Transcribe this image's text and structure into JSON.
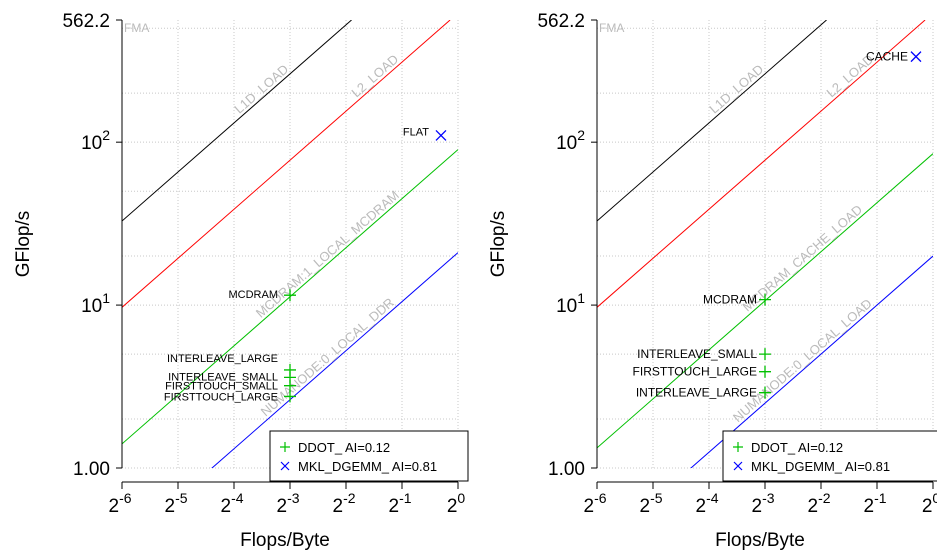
{
  "chart_data": [
    {
      "type": "line",
      "xscale": "log2",
      "yscale": "log10",
      "xlim": [
        0.015625,
        1
      ],
      "ylim": [
        1.0,
        562.2
      ],
      "xlabel": "Flops/Byte",
      "ylabel": "GFlop/s",
      "x_ticks": [
        {
          "base": "2",
          "exp": "-6",
          "value": 0.015625
        },
        {
          "base": "2",
          "exp": "-5",
          "value": 0.03125
        },
        {
          "base": "2",
          "exp": "-4",
          "value": 0.0625
        },
        {
          "base": "2",
          "exp": "-3",
          "value": 0.125
        },
        {
          "base": "2",
          "exp": "-2",
          "value": 0.25
        },
        {
          "base": "2",
          "exp": "-1",
          "value": 0.5
        },
        {
          "base": "2",
          "exp": "0",
          "value": 1
        }
      ],
      "y_ticks": [
        {
          "text": "1.00",
          "value": 1.0
        },
        {
          "base": "10",
          "exp": "1",
          "value": 10
        },
        {
          "base": "10",
          "exp": "2",
          "value": 100
        },
        {
          "text": "562.2",
          "value": 562.2
        }
      ],
      "compute_roof": {
        "label": "FMA",
        "value": 562.2
      },
      "roofs": [
        {
          "name": "L1D_LOAD",
          "bandwidth": 2100,
          "color": "#000000"
        },
        {
          "name": "L2_LOAD",
          "bandwidth": 620,
          "color": "#ff0000"
        },
        {
          "name": "MCDRAM:1_LOCAL_MCDRAM",
          "bandwidth": 90,
          "color": "#00c000"
        },
        {
          "name": "NUMANODE:0_LOCAL_DDR",
          "bandwidth": 21,
          "color": "#0000ff"
        }
      ],
      "points": [
        {
          "label": "FLAT",
          "x": 0.81,
          "y": 110,
          "marker": "x",
          "color": "#0000ff"
        },
        {
          "label": "MCDRAM",
          "x": 0.125,
          "y": 11.5,
          "marker": "+",
          "color": "#00c000"
        },
        {
          "label": "INTERLEAVE_LARGE",
          "x": 0.125,
          "y": 4.0,
          "marker": "+",
          "color": "#00c000"
        },
        {
          "label": "INTERLEAVE_SMALL",
          "x": 0.125,
          "y": 3.6,
          "marker": "+",
          "color": "#00c000"
        },
        {
          "label": "FIRSTTOUCH_SMALL",
          "x": 0.125,
          "y": 3.2,
          "marker": "+",
          "color": "#00c000"
        },
        {
          "label": "FIRSTTOUCH_LARGE",
          "x": 0.125,
          "y": 2.75,
          "marker": "+",
          "color": "#00c000"
        }
      ],
      "legend": {
        "position": "bottom-right",
        "entries": [
          {
            "marker": "+",
            "color": "#00c000",
            "label": "DDOT_ AI=0.12"
          },
          {
            "marker": "x",
            "color": "#0000ff",
            "label": "MKL_DGEMM_ AI=0.81"
          }
        ]
      }
    },
    {
      "type": "line",
      "xscale": "log2",
      "yscale": "log10",
      "xlim": [
        0.015625,
        1
      ],
      "ylim": [
        1.0,
        562.2
      ],
      "xlabel": "Flops/Byte",
      "ylabel": "GFlop/s",
      "x_ticks": [
        {
          "base": "2",
          "exp": "-6",
          "value": 0.015625
        },
        {
          "base": "2",
          "exp": "-5",
          "value": 0.03125
        },
        {
          "base": "2",
          "exp": "-4",
          "value": 0.0625
        },
        {
          "base": "2",
          "exp": "-3",
          "value": 0.125
        },
        {
          "base": "2",
          "exp": "-2",
          "value": 0.25
        },
        {
          "base": "2",
          "exp": "-1",
          "value": 0.5
        },
        {
          "base": "2",
          "exp": "0",
          "value": 1
        }
      ],
      "y_ticks": [
        {
          "text": "1.00",
          "value": 1.0
        },
        {
          "base": "10",
          "exp": "1",
          "value": 10
        },
        {
          "base": "10",
          "exp": "2",
          "value": 100
        },
        {
          "text": "562.2",
          "value": 562.2
        }
      ],
      "compute_roof": {
        "label": "FMA",
        "value": 562.2
      },
      "roofs": [
        {
          "name": "L1D_LOAD",
          "bandwidth": 2100,
          "color": "#000000"
        },
        {
          "name": "L2_LOAD",
          "bandwidth": 620,
          "color": "#ff0000"
        },
        {
          "name": "MCDRAM_CACHE_LOAD",
          "bandwidth": 85,
          "color": "#00c000"
        },
        {
          "name": "NUMANODE:0_LOCAL_LOAD",
          "bandwidth": 20,
          "color": "#0000ff"
        }
      ],
      "points": [
        {
          "label": "CACHE",
          "x": 0.81,
          "y": 335,
          "marker": "x",
          "color": "#0000ff"
        },
        {
          "label": "MCDRAM",
          "x": 0.125,
          "y": 10.8,
          "marker": "+",
          "color": "#00c000"
        },
        {
          "label": "INTERLEAVE_SMALL",
          "x": 0.125,
          "y": 5.0,
          "marker": "+",
          "color": "#00c000"
        },
        {
          "label": "FIRSTTOUCH_LARGE",
          "x": 0.125,
          "y": 3.9,
          "marker": "+",
          "color": "#00c000"
        },
        {
          "label": "INTERLEAVE_LARGE",
          "x": 0.125,
          "y": 2.9,
          "marker": "+",
          "color": "#00c000"
        }
      ],
      "legend": {
        "position": "bottom-right",
        "entries": [
          {
            "marker": "+",
            "color": "#00c000",
            "label": "DDOT_ AI=0.12"
          },
          {
            "marker": "x",
            "color": "#0000ff",
            "label": "MKL_DGEMM_ AI=0.81"
          }
        ]
      }
    }
  ]
}
